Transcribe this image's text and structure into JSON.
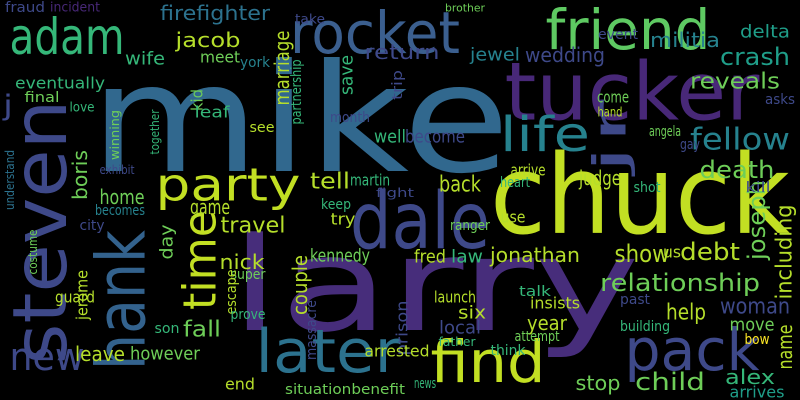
{
  "words": [
    {
      "text": "mike",
      "color": "#31688e"
    },
    {
      "text": "chuck",
      "color": "#c2df23"
    },
    {
      "text": "larry",
      "color": "#472d7b"
    },
    {
      "text": "steven",
      "color": "#3e4989"
    },
    {
      "text": "tucker",
      "color": "#482878"
    },
    {
      "text": "dale",
      "color": "#3e4989"
    },
    {
      "text": "rocket",
      "color": "#3b5f8f"
    },
    {
      "text": "friend",
      "color": "#5ec962"
    },
    {
      "text": "adam",
      "color": "#35b779"
    },
    {
      "text": "hank",
      "color": "#33628d"
    },
    {
      "text": "party",
      "color": "#c2df23"
    },
    {
      "text": "time",
      "color": "#c2df23"
    },
    {
      "text": "later",
      "color": "#2c728e"
    },
    {
      "text": "find",
      "color": "#c2df23"
    },
    {
      "text": "pack",
      "color": "#3e4989"
    },
    {
      "text": "life",
      "color": "#26828e"
    },
    {
      "text": "jr",
      "color": "#3e4989"
    },
    {
      "text": "new",
      "color": "#3e4989"
    },
    {
      "text": "j",
      "color": "#3e4989"
    },
    {
      "text": "fellow",
      "color": "#26828e"
    },
    {
      "text": "death",
      "color": "#6ece58"
    },
    {
      "text": "joseph",
      "color": "#6ece58"
    },
    {
      "text": "including",
      "color": "#b5de2b"
    },
    {
      "text": "debt",
      "color": "#b5de2b"
    },
    {
      "text": "show",
      "color": "#b5de2b"
    },
    {
      "text": "relationship",
      "color": "#6ece58"
    },
    {
      "text": "woman",
      "color": "#3e4989"
    },
    {
      "text": "help",
      "color": "#b5de2b"
    },
    {
      "text": "move",
      "color": "#6ece58"
    },
    {
      "text": "name",
      "color": "#b5de2b"
    },
    {
      "text": "bow",
      "color": "#fde725"
    },
    {
      "text": "alex",
      "color": "#35b779"
    },
    {
      "text": "arrives",
      "color": "#1f9e89"
    },
    {
      "text": "child",
      "color": "#6ece58"
    },
    {
      "text": "stop",
      "color": "#6ece58"
    },
    {
      "text": "jonathan",
      "color": "#b5de2b"
    },
    {
      "text": "law",
      "color": "#35b779"
    },
    {
      "text": "us",
      "color": "#b5de2b"
    },
    {
      "text": "crash",
      "color": "#1f9e89"
    },
    {
      "text": "delta",
      "color": "#1f9e89"
    },
    {
      "text": "militia",
      "color": "#26828e"
    },
    {
      "text": "event",
      "color": "#3e4989"
    },
    {
      "text": "reveals",
      "color": "#6ece58"
    },
    {
      "text": "asks",
      "color": "#3e4989"
    },
    {
      "text": "jewel",
      "color": "#26828e"
    },
    {
      "text": "wedding",
      "color": "#3e4989"
    },
    {
      "text": "return",
      "color": "#3e4989"
    },
    {
      "text": "save",
      "color": "#35b779"
    },
    {
      "text": "firefighter",
      "color": "#2c728e"
    },
    {
      "text": "jacob",
      "color": "#b5de2b"
    },
    {
      "text": "marriage",
      "color": "#b5de2b"
    },
    {
      "text": "partnership",
      "color": "#35b779"
    },
    {
      "text": "meet",
      "color": "#6ece58"
    },
    {
      "text": "wife",
      "color": "#35b779"
    },
    {
      "text": "eventually",
      "color": "#35b779"
    },
    {
      "text": "york",
      "color": "#26828e"
    },
    {
      "text": "kid",
      "color": "#6ece58"
    },
    {
      "text": "leaf",
      "color": "#35b779"
    },
    {
      "text": "see",
      "color": "#b5de2b"
    },
    {
      "text": "final",
      "color": "#6ece58"
    },
    {
      "text": "love",
      "color": "#35b779"
    },
    {
      "text": "winning",
      "color": "#6ece58"
    },
    {
      "text": "together",
      "color": "#35b779"
    },
    {
      "text": "understand",
      "color": "#2c728e"
    },
    {
      "text": "costume",
      "color": "#6ece58"
    },
    {
      "text": "exhibit",
      "color": "#3e4989"
    },
    {
      "text": "boris",
      "color": "#6ece58"
    },
    {
      "text": "home",
      "color": "#6ece58"
    },
    {
      "text": "becomes",
      "color": "#26828e"
    },
    {
      "text": "city",
      "color": "#3e4989"
    },
    {
      "text": "day",
      "color": "#6ece58"
    },
    {
      "text": "game",
      "color": "#b5de2b"
    },
    {
      "text": "travel",
      "color": "#b5de2b"
    },
    {
      "text": "nick",
      "color": "#b5de2b"
    },
    {
      "text": "jerome",
      "color": "#b5de2b"
    },
    {
      "text": "guard",
      "color": "#b5de2b"
    },
    {
      "text": "super",
      "color": "#6ece58"
    },
    {
      "text": "escape",
      "color": "#b5de2b"
    },
    {
      "text": "prove",
      "color": "#35b779"
    },
    {
      "text": "couple",
      "color": "#b5de2b"
    },
    {
      "text": "kennedy",
      "color": "#6ece58"
    },
    {
      "text": "fred",
      "color": "#b5de2b"
    },
    {
      "text": "tell",
      "color": "#b5de2b"
    },
    {
      "text": "martin",
      "color": "#35b779"
    },
    {
      "text": "keep",
      "color": "#35b779"
    },
    {
      "text": "try",
      "color": "#b5de2b"
    },
    {
      "text": "back",
      "color": "#b5de2b"
    },
    {
      "text": "judge",
      "color": "#b5de2b"
    },
    {
      "text": "arrive",
      "color": "#b5de2b"
    },
    {
      "text": "heart",
      "color": "#35b779"
    },
    {
      "text": "use",
      "color": "#b5de2b"
    },
    {
      "text": "ranger",
      "color": "#6ece58"
    },
    {
      "text": "fight",
      "color": "#3e4989"
    },
    {
      "text": "shot",
      "color": "#35b779"
    },
    {
      "text": "kill",
      "color": "#3e4989"
    },
    {
      "text": "angela",
      "color": "#6ece58"
    },
    {
      "text": "gay",
      "color": "#3e4989"
    },
    {
      "text": "come",
      "color": "#6ece58"
    },
    {
      "text": "become",
      "color": "#3e4989"
    },
    {
      "text": "well",
      "color": "#35b779"
    },
    {
      "text": "month",
      "color": "#3e4989"
    },
    {
      "text": "trip",
      "color": "#3e4989"
    },
    {
      "text": "massacre",
      "color": "#3e4989"
    },
    {
      "text": "prison",
      "color": "#3e4989"
    },
    {
      "text": "six",
      "color": "#b5de2b"
    },
    {
      "text": "insists",
      "color": "#b5de2b"
    },
    {
      "text": "launch",
      "color": "#b5de2b"
    },
    {
      "text": "talk",
      "color": "#35b779"
    },
    {
      "text": "year",
      "color": "#b5de2b"
    },
    {
      "text": "local",
      "color": "#3e4989"
    },
    {
      "text": "attempt",
      "color": "#6ece58"
    },
    {
      "text": "think",
      "color": "#35b779"
    },
    {
      "text": "father",
      "color": "#35b779"
    },
    {
      "text": "arrested",
      "color": "#b5de2b"
    },
    {
      "text": "situationbenefit",
      "color": "#6ece58"
    },
    {
      "text": "news",
      "color": "#35b779"
    },
    {
      "text": "leave",
      "color": "#b5de2b"
    },
    {
      "text": "however",
      "color": "#6ece58"
    },
    {
      "text": "fall",
      "color": "#6ece58"
    },
    {
      "text": "end",
      "color": "#b5de2b"
    },
    {
      "text": "son",
      "color": "#35b779"
    },
    {
      "text": "building",
      "color": "#35b779"
    },
    {
      "text": "past",
      "color": "#3e4989"
    },
    {
      "text": "fraud",
      "color": "#3e4989"
    },
    {
      "text": "incident",
      "color": "#482878"
    },
    {
      "text": "take",
      "color": "#3e4989"
    },
    {
      "text": "brother",
      "color": "#6ece58"
    },
    {
      "text": "hand",
      "color": "#b5de2b"
    }
  ]
}
